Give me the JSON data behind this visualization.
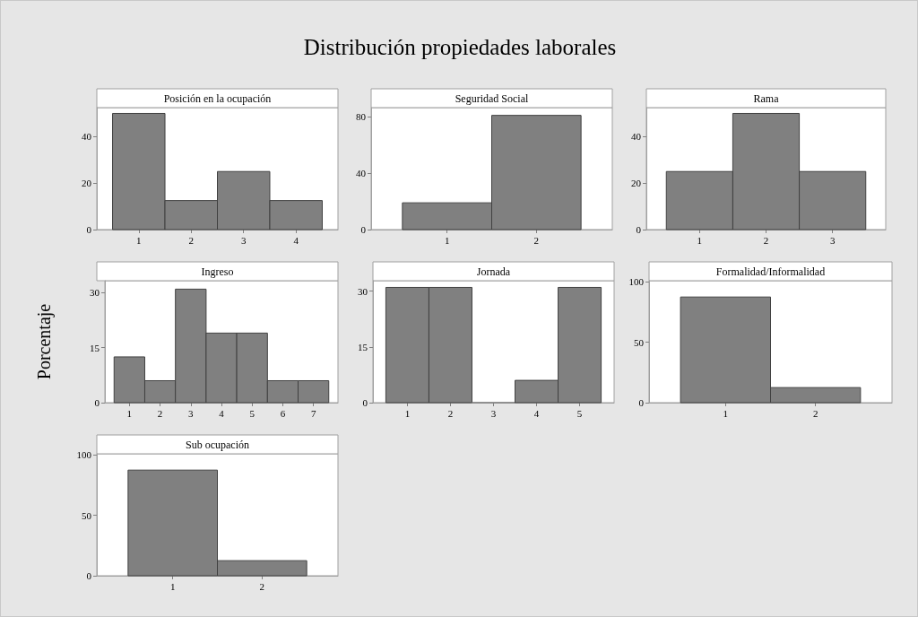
{
  "chart_data": [
    {
      "type": "other",
      "title": "Distribución propiedades laborales"
    },
    {
      "type": "histogram",
      "title": "Posición en la ocupación",
      "bins": [
        0.5,
        1.5,
        2.5,
        3.5,
        4.5
      ],
      "values": [
        50,
        12.5,
        25,
        12.5
      ],
      "color": "#808080",
      "xlim": [
        0.2,
        4.8
      ],
      "xticks": [
        1,
        2,
        3,
        4
      ],
      "ylim": [
        0,
        52.5
      ],
      "yticks": [
        0,
        20,
        40
      ]
    },
    {
      "type": "histogram",
      "title": "Seguridad Social",
      "bins": [
        0.5,
        1.5,
        2.5
      ],
      "values": [
        19,
        81
      ],
      "color": "#808080",
      "xlim": [
        0.15,
        2.85
      ],
      "xticks": [
        1,
        2
      ],
      "ylim": [
        0,
        86.5
      ],
      "yticks": [
        0,
        40,
        80
      ]
    },
    {
      "type": "histogram",
      "title": "Rama",
      "bins": [
        0.5,
        1.5,
        2.5,
        3.5
      ],
      "values": [
        25,
        50,
        25
      ],
      "color": "#808080",
      "xlim": [
        0.2,
        3.8
      ],
      "xticks": [
        1,
        2,
        3
      ],
      "ylim": [
        0,
        52.5
      ],
      "yticks": [
        0,
        20,
        40
      ]
    },
    {
      "type": "histogram",
      "title": "Ingreso",
      "ylabel": "Porcentaje",
      "bins": [
        0.5,
        1.5,
        2.5,
        3.5,
        4.5,
        5.5,
        6.5,
        7.5
      ],
      "values": [
        12.5,
        6,
        31,
        19,
        19,
        6,
        6
      ],
      "color": "#808080",
      "xlim": [
        0.2,
        7.8
      ],
      "xticks": [
        1,
        2,
        3,
        4,
        5,
        6,
        7
      ],
      "ylim": [
        0,
        33.3
      ],
      "yticks": [
        0,
        15,
        30
      ]
    },
    {
      "type": "histogram",
      "title": "Jornada",
      "bins": [
        0.5,
        1.5,
        2.5,
        3.5,
        4.5,
        5.5
      ],
      "values": [
        31,
        31,
        0,
        6,
        31
      ],
      "color": "#808080",
      "xlim": [
        0.2,
        5.8
      ],
      "xticks": [
        1,
        2,
        3,
        4,
        5
      ],
      "ylim": [
        0,
        32.8
      ],
      "yticks": [
        0,
        15,
        30
      ]
    },
    {
      "type": "histogram",
      "title": "Formalidad/Informalidad",
      "bins": [
        0.5,
        1.5,
        2.5
      ],
      "values": [
        87.5,
        12.5
      ],
      "color": "#808080",
      "xlim": [
        0.15,
        2.85
      ],
      "xticks": [
        1,
        2
      ],
      "ylim": [
        0,
        101
      ],
      "yticks": [
        0,
        50,
        100
      ]
    },
    {
      "type": "histogram",
      "title": "Sub ocupación",
      "bins": [
        0.5,
        1.5,
        2.5
      ],
      "values": [
        87.5,
        12.5
      ],
      "color": "#808080",
      "xlim": [
        0.15,
        2.85
      ],
      "xticks": [
        1,
        2
      ],
      "ylim": [
        0,
        101
      ],
      "yticks": [
        0,
        50,
        100
      ]
    }
  ]
}
